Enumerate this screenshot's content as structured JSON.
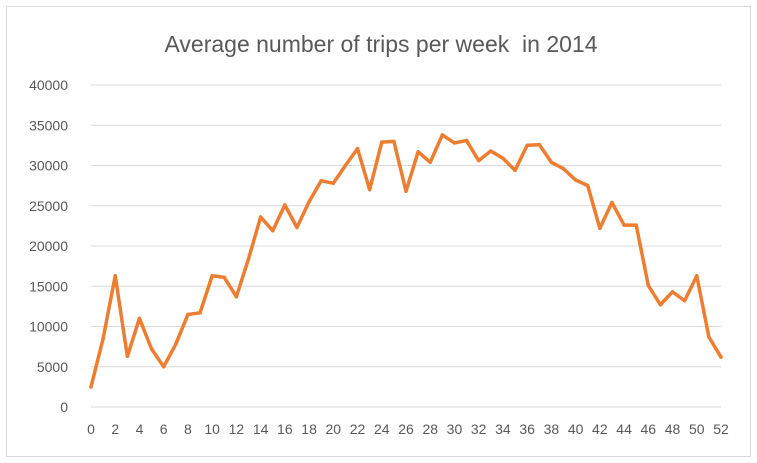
{
  "chart_data": {
    "type": "line",
    "title": "Average number of trips per week  in 2014",
    "xlabel": "",
    "ylabel": "",
    "xlim": [
      0,
      52
    ],
    "ylim": [
      0,
      40000
    ],
    "x_ticks": [
      0,
      2,
      4,
      6,
      8,
      10,
      12,
      14,
      16,
      18,
      20,
      22,
      24,
      26,
      28,
      30,
      32,
      34,
      36,
      38,
      40,
      42,
      44,
      46,
      48,
      50,
      52
    ],
    "y_ticks": [
      0,
      5000,
      10000,
      15000,
      20000,
      25000,
      30000,
      35000,
      40000
    ],
    "grid": "horizontal",
    "legend": "none",
    "color": "#ED7D31",
    "x": [
      0,
      1,
      2,
      3,
      4,
      5,
      6,
      7,
      8,
      9,
      10,
      11,
      12,
      13,
      14,
      15,
      16,
      17,
      18,
      19,
      20,
      21,
      22,
      23,
      24,
      25,
      26,
      27,
      28,
      29,
      30,
      31,
      32,
      33,
      34,
      35,
      36,
      37,
      38,
      39,
      40,
      41,
      42,
      43,
      44,
      45,
      46,
      47,
      48,
      49,
      50,
      51,
      52
    ],
    "series": [
      {
        "values": [
          2500,
          8500,
          16300,
          6300,
          11000,
          7200,
          5000,
          7800,
          11500,
          11700,
          16300,
          16100,
          13700,
          18400,
          23600,
          21900,
          25100,
          22300,
          25500,
          28100,
          27800,
          30000,
          32100,
          27000,
          32900,
          33000,
          26800,
          31700,
          30400,
          33800,
          32800,
          33100,
          30600,
          31800,
          30900,
          29400,
          32500,
          32600,
          30400,
          29600,
          28200,
          27500,
          22200,
          25400,
          22600,
          22600,
          15100,
          12700,
          14300,
          13200,
          16300,
          8700,
          6200
        ]
      }
    ]
  }
}
